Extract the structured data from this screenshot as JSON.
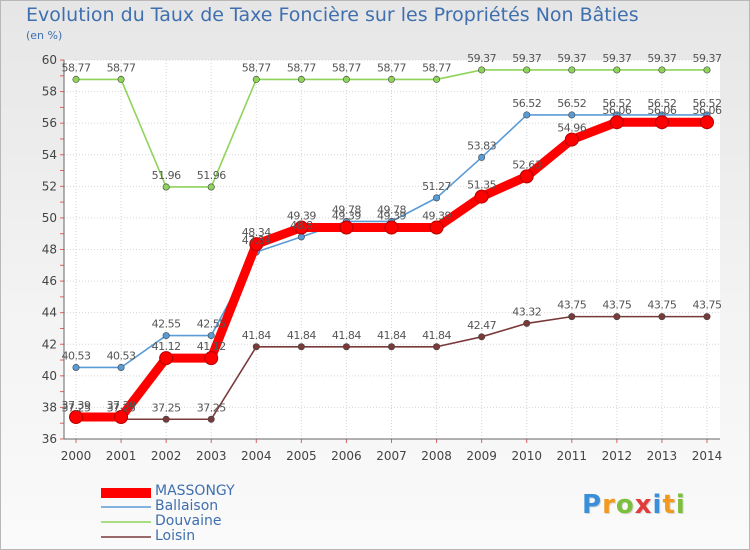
{
  "chart_data": {
    "type": "line",
    "title": "Evolution du Taux de Taxe Foncière sur les Propriétés Non Bâties",
    "ylabel": "(en %)",
    "xlabel": "",
    "ylim": [
      36,
      60
    ],
    "yticks": [
      36,
      38,
      40,
      42,
      44,
      46,
      48,
      50,
      52,
      54,
      56,
      58,
      60
    ],
    "categories": [
      "2000",
      "2001",
      "2002",
      "2003",
      "2004",
      "2005",
      "2006",
      "2007",
      "2008",
      "2009",
      "2010",
      "2011",
      "2012",
      "2013",
      "2014"
    ],
    "grid": true,
    "series": [
      {
        "name": "MASSONGY",
        "color": "#ff0000",
        "values": [
          37.39,
          37.39,
          41.12,
          41.12,
          48.34,
          49.39,
          49.39,
          49.39,
          49.39,
          51.35,
          52.63,
          54.96,
          56.06,
          56.06,
          56.06
        ],
        "labels": [
          "37.39",
          "37.39",
          "41.12",
          "41.12",
          "48.34",
          "49.39",
          "49.39",
          "49.39",
          "49.39",
          "51.35",
          "52.63",
          "54.96",
          "56.06",
          "56.06",
          "56.06"
        ]
      },
      {
        "name": "Ballaison",
        "color": "#5b9bd5",
        "values": [
          40.53,
          40.53,
          42.55,
          42.55,
          47.84,
          48.8,
          49.78,
          49.78,
          51.27,
          53.83,
          56.52,
          56.52,
          56.52,
          56.52,
          56.52
        ],
        "labels": [
          "40.53",
          "40.53",
          "42.55",
          "42.55",
          "47.84",
          "48.8",
          "49.78",
          "49.78",
          "51.27",
          "53.83",
          "56.52",
          "56.52",
          "56.52",
          "56.52",
          "56.52"
        ]
      },
      {
        "name": "Douvaine",
        "color": "#8fd45a",
        "values": [
          58.77,
          58.77,
          51.96,
          51.96,
          58.77,
          58.77,
          58.77,
          58.77,
          58.77,
          59.37,
          59.37,
          59.37,
          59.37,
          59.37,
          59.37
        ],
        "labels": [
          "58.77",
          "58.77",
          "51.96",
          "51.96",
          "58.77",
          "58.77",
          "58.77",
          "58.77",
          "58.77",
          "59.37",
          "59.37",
          "59.37",
          "59.37",
          "59.37",
          "59.37"
        ]
      },
      {
        "name": "Loisin",
        "color": "#7a3a3a",
        "values": [
          37.25,
          37.25,
          37.25,
          37.25,
          41.84,
          41.84,
          41.84,
          41.84,
          41.84,
          42.47,
          43.32,
          43.75,
          43.75,
          43.75,
          43.75
        ],
        "labels": [
          "37.25",
          "37.25",
          "37.25",
          "37.25",
          "41.84",
          "41.84",
          "41.84",
          "41.84",
          "41.84",
          "42.47",
          "43.32",
          "43.75",
          "43.75",
          "43.75",
          "43.75"
        ]
      }
    ]
  },
  "legend": {
    "items": [
      {
        "label": "MASSONGY",
        "color": "#ff0000"
      },
      {
        "label": "Ballaison",
        "color": "#5b9bd5"
      },
      {
        "label": "Douvaine",
        "color": "#8fd45a"
      },
      {
        "label": "Loisin",
        "color": "#7a3a3a"
      }
    ]
  },
  "logo": {
    "letters": [
      "P",
      "r",
      "o",
      "x",
      "i",
      "t",
      "i"
    ],
    "colors": [
      "#3a8fd8",
      "#f29a1f",
      "#7cbf3c",
      "#e23b3b",
      "#3a8fd8",
      "#f29a1f",
      "#7cbf3c"
    ]
  }
}
